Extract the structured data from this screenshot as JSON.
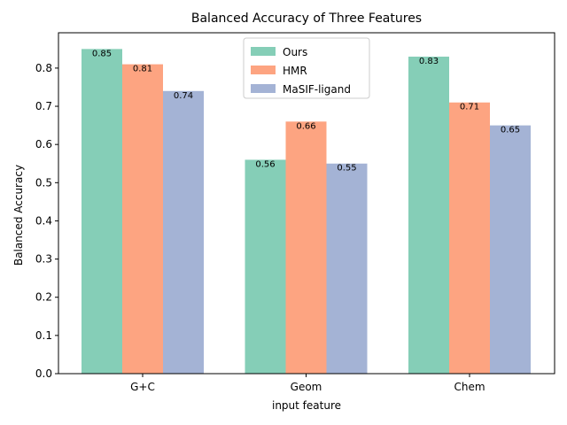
{
  "chart_data": {
    "type": "bar",
    "title": "Balanced Accuracy of Three Features",
    "xlabel": "input feature",
    "ylabel": "Balanced Accuracy",
    "categories": [
      "G+C",
      "Geom",
      "Chem"
    ],
    "series": [
      {
        "name": "Ours",
        "color": "#66c2a5",
        "values": [
          0.85,
          0.56,
          0.83
        ]
      },
      {
        "name": "HMR",
        "color": "#fc8d62",
        "values": [
          0.81,
          0.66,
          0.71
        ]
      },
      {
        "name": "MaSIF-ligand",
        "color": "#8da0cb",
        "values": [
          0.74,
          0.55,
          0.65
        ]
      }
    ],
    "ylim": [
      0,
      0.8925
    ],
    "yticks": [
      "0.0",
      "0.1",
      "0.2",
      "0.3",
      "0.4",
      "0.5",
      "0.6",
      "0.7",
      "0.8"
    ],
    "grid": false,
    "legend_position": "top-center"
  }
}
